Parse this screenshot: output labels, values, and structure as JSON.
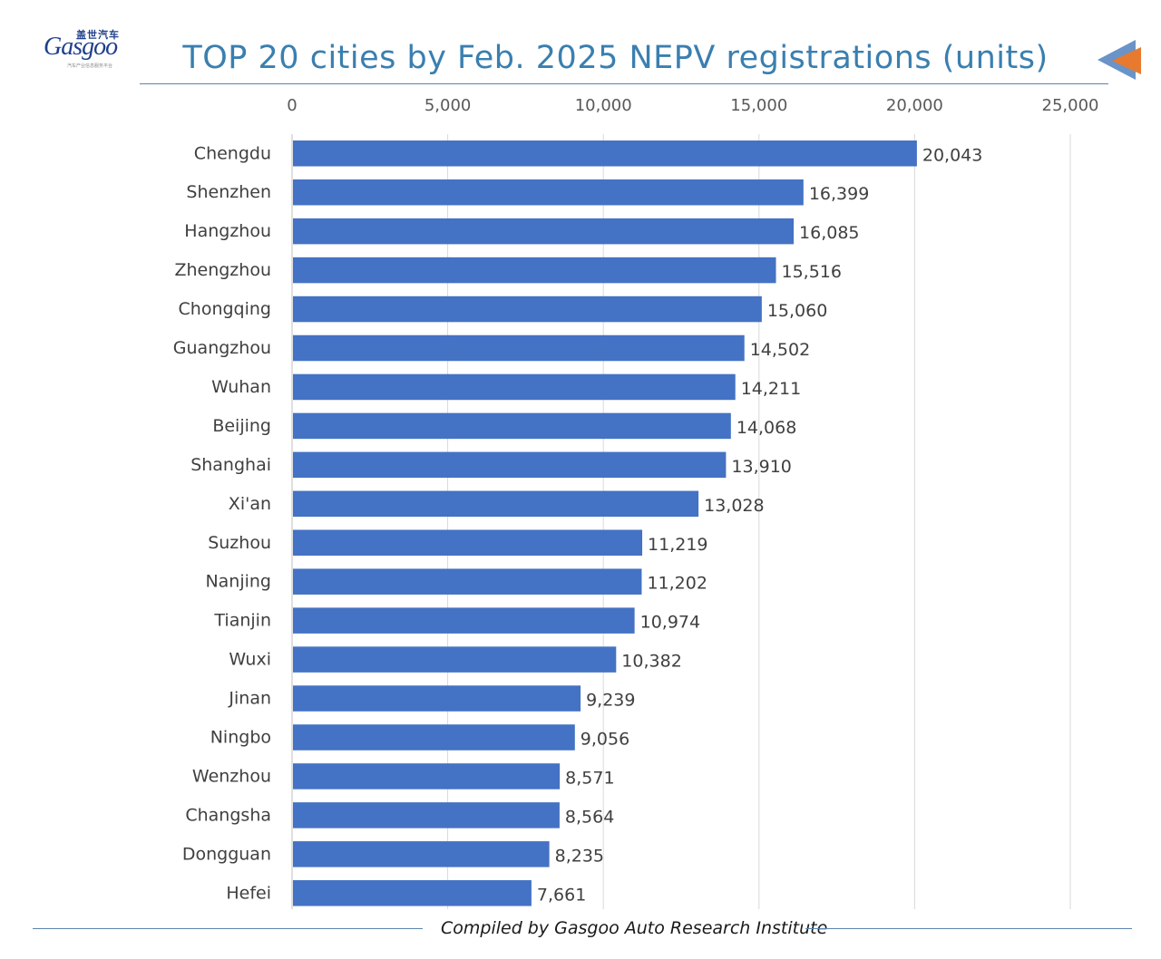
{
  "brand": {
    "name": "Gasgoo",
    "name_cn": "盖世汽车",
    "tagline_cn": "汽车产业信息服务平台"
  },
  "title": "TOP 20 cities by Feb. 2025 NEPV registrations (units)",
  "footer": "Compiled by Gasgoo Auto Research Institute",
  "colors": {
    "bar": "#4472c4",
    "title": "#3a7fb0",
    "rule": "#5a84b0"
  },
  "chart_data": {
    "type": "bar",
    "orientation": "horizontal",
    "categories": [
      "Chengdu",
      "Shenzhen",
      "Hangzhou",
      "Zhengzhou",
      "Chongqing",
      "Guangzhou",
      "Wuhan",
      "Beijing",
      "Shanghai",
      "Xi'an",
      "Suzhou",
      "Nanjing",
      "Tianjin",
      "Wuxi",
      "Jinan",
      "Ningbo",
      "Wenzhou",
      "Changsha",
      "Dongguan",
      "Hefei"
    ],
    "values": [
      20043,
      16399,
      16085,
      15516,
      15060,
      14502,
      14211,
      14068,
      13910,
      13028,
      11219,
      11202,
      10974,
      10382,
      9239,
      9056,
      8571,
      8564,
      8235,
      7661
    ],
    "data_labels": [
      "20,043",
      "16,399",
      "16,085",
      "15,516",
      "15,060",
      "14,502",
      "14,211",
      "14,068",
      "13,910",
      "13,028",
      "11,219",
      "11,202",
      "10,974",
      "10,382",
      "9,239",
      "9,056",
      "8,571",
      "8,564",
      "8,235",
      "7,661"
    ],
    "x_ticks": [
      0,
      5000,
      10000,
      15000,
      20000,
      25000
    ],
    "x_tick_labels": [
      "0",
      "5,000",
      "10,000",
      "15,000",
      "20,000",
      "25,000"
    ],
    "xlim": [
      0,
      25000
    ],
    "axis_position": "top",
    "grid": true,
    "legend": "none"
  }
}
